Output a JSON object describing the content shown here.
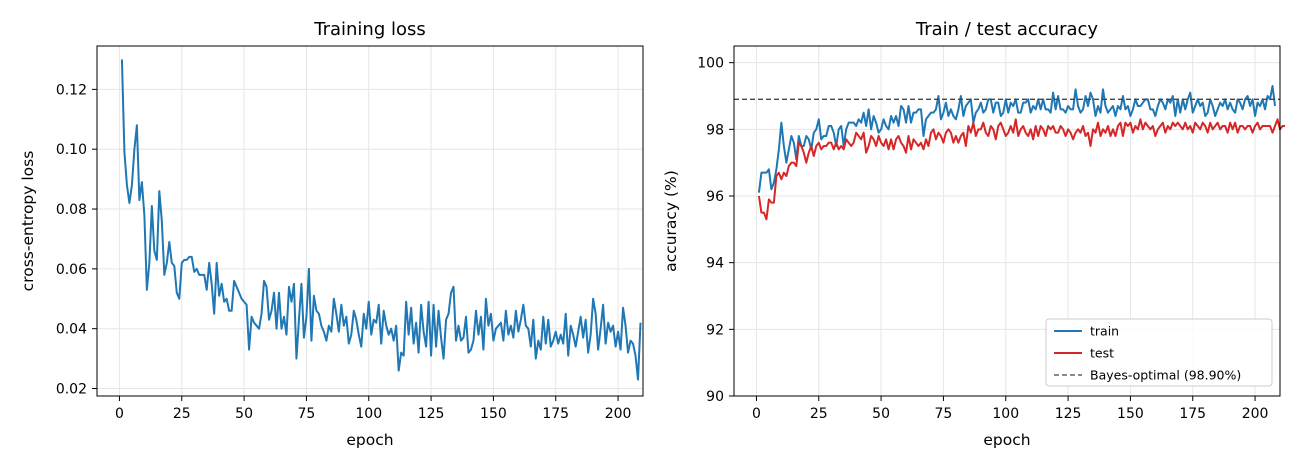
{
  "colors": {
    "train": "#1f77b4",
    "test": "#d62728",
    "bayes": "#444444",
    "grid": "#e6e6e6"
  },
  "chart_data": [
    {
      "type": "line",
      "title": "Training loss",
      "xlabel": "epoch",
      "ylabel": "cross-entropy loss",
      "xlim": [
        -9,
        210
      ],
      "ylim": [
        0.0175,
        0.1345
      ],
      "xticks": [
        0,
        25,
        50,
        75,
        100,
        125,
        150,
        175,
        200
      ],
      "yticks": [
        0.02,
        0.04,
        0.06,
        0.08,
        0.1,
        0.12
      ],
      "ytick_labels": [
        "0.02",
        "0.04",
        "0.06",
        "0.08",
        "0.10",
        "0.12"
      ],
      "grid": true,
      "series": [
        {
          "color": "#1f77b4",
          "x_start": 1,
          "values": [
            0.13,
            0.099,
            0.088,
            0.082,
            0.088,
            0.1,
            0.108,
            0.083,
            0.089,
            0.078,
            0.053,
            0.062,
            0.081,
            0.066,
            0.063,
            0.086,
            0.076,
            0.058,
            0.062,
            0.069,
            0.062,
            0.061,
            0.052,
            0.05,
            0.062,
            0.063,
            0.063,
            0.064,
            0.064,
            0.059,
            0.06,
            0.058,
            0.058,
            0.058,
            0.053,
            0.062,
            0.055,
            0.045,
            0.062,
            0.051,
            0.055,
            0.049,
            0.05,
            0.046,
            0.046,
            0.056,
            0.054,
            0.052,
            0.05,
            0.049,
            0.048,
            0.033,
            0.044,
            0.042,
            0.041,
            0.04,
            0.045,
            0.056,
            0.054,
            0.043,
            0.046,
            0.052,
            0.04,
            0.052,
            0.04,
            0.044,
            0.038,
            0.054,
            0.049,
            0.055,
            0.03,
            0.043,
            0.055,
            0.037,
            0.044,
            0.06,
            0.036,
            0.051,
            0.046,
            0.045,
            0.041,
            0.039,
            0.036,
            0.041,
            0.039,
            0.05,
            0.045,
            0.039,
            0.048,
            0.041,
            0.044,
            0.035,
            0.038,
            0.046,
            0.043,
            0.038,
            0.034,
            0.045,
            0.04,
            0.049,
            0.038,
            0.043,
            0.042,
            0.048,
            0.035,
            0.046,
            0.041,
            0.038,
            0.04,
            0.036,
            0.041,
            0.026,
            0.032,
            0.031,
            0.049,
            0.038,
            0.047,
            0.035,
            0.042,
            0.032,
            0.048,
            0.039,
            0.034,
            0.049,
            0.031,
            0.048,
            0.034,
            0.046,
            0.037,
            0.03,
            0.043,
            0.045,
            0.052,
            0.054,
            0.036,
            0.041,
            0.036,
            0.037,
            0.044,
            0.032,
            0.033,
            0.036,
            0.046,
            0.038,
            0.044,
            0.033,
            0.05,
            0.041,
            0.045,
            0.036,
            0.04,
            0.041,
            0.042,
            0.036,
            0.046,
            0.038,
            0.041,
            0.037,
            0.046,
            0.039,
            0.043,
            0.048,
            0.041,
            0.04,
            0.034,
            0.043,
            0.03,
            0.036,
            0.033,
            0.044,
            0.035,
            0.043,
            0.034,
            0.036,
            0.039,
            0.035,
            0.038,
            0.035,
            0.045,
            0.031,
            0.041,
            0.038,
            0.034,
            0.039,
            0.044,
            0.037,
            0.043,
            0.032,
            0.038,
            0.05,
            0.045,
            0.033,
            0.04,
            0.048,
            0.035,
            0.042,
            0.039,
            0.041,
            0.034,
            0.039,
            0.033,
            0.047,
            0.041,
            0.032,
            0.036,
            0.035,
            0.031,
            0.023,
            0.042
          ]
        }
      ]
    },
    {
      "type": "line",
      "title": "Train / test accuracy",
      "xlabel": "epoch",
      "ylabel": "accuracy (%)",
      "xlim": [
        -9,
        210
      ],
      "ylim": [
        90,
        100.5
      ],
      "xticks": [
        0,
        25,
        50,
        75,
        100,
        125,
        150,
        175,
        200
      ],
      "yticks": [
        90,
        92,
        94,
        96,
        98,
        100
      ],
      "ytick_labels": [
        "90",
        "92",
        "94",
        "96",
        "98",
        "100"
      ],
      "grid": true,
      "hline": {
        "y": 98.9,
        "label": "Bayes-optimal (98.90%)",
        "color": "#444444",
        "dashed": true
      },
      "legend": {
        "position": "lower-right",
        "entries": [
          "train",
          "test",
          "Bayes-optimal (98.90%)"
        ]
      },
      "series": [
        {
          "name": "train",
          "color": "#1f77b4",
          "x_start": 1,
          "values": [
            96.1,
            96.7,
            96.7,
            96.7,
            96.8,
            96.2,
            96.4,
            96.8,
            97.4,
            98.2,
            97.5,
            97.0,
            97.4,
            97.8,
            97.6,
            97.1,
            97.8,
            97.5,
            97.5,
            97.8,
            97.7,
            97.4,
            97.9,
            98.0,
            98.3,
            97.7,
            97.8,
            97.8,
            98.1,
            98.1,
            97.9,
            97.5,
            98.0,
            98.1,
            97.5,
            98.0,
            98.2,
            98.2,
            98.2,
            98.1,
            98.3,
            98.2,
            98.5,
            98.1,
            98.6,
            98.0,
            98.4,
            98.2,
            97.9,
            98.0,
            98.3,
            98.1,
            98.0,
            98.4,
            98.2,
            98.4,
            98.1,
            98.7,
            98.6,
            98.2,
            98.7,
            98.2,
            98.5,
            98.5,
            98.6,
            98.6,
            97.8,
            98.3,
            98.4,
            98.5,
            98.5,
            98.6,
            99.0,
            98.3,
            98.5,
            98.8,
            98.4,
            98.6,
            98.4,
            98.3,
            98.6,
            99.0,
            98.4,
            98.7,
            98.8,
            98.9,
            98.2,
            98.5,
            98.6,
            98.8,
            98.5,
            98.6,
            98.9,
            98.9,
            98.5,
            98.8,
            98.8,
            98.4,
            98.5,
            98.9,
            98.5,
            98.8,
            98.7,
            98.9,
            98.5,
            98.5,
            98.8,
            98.8,
            98.9,
            98.5,
            98.7,
            98.6,
            98.9,
            98.6,
            98.9,
            98.6,
            98.6,
            98.5,
            99.1,
            98.6,
            99.0,
            98.6,
            98.6,
            98.5,
            98.7,
            98.6,
            98.6,
            99.2,
            98.7,
            98.5,
            98.6,
            99.0,
            98.7,
            99.1,
            98.9,
            98.4,
            98.7,
            98.5,
            99.2,
            98.7,
            98.5,
            98.6,
            98.7,
            98.4,
            98.7,
            98.6,
            99.0,
            98.6,
            98.7,
            98.4,
            98.6,
            98.9,
            98.7,
            98.7,
            98.8,
            98.9,
            98.9,
            98.6,
            98.6,
            98.4,
            98.7,
            98.9,
            98.8,
            98.6,
            98.9,
            98.8,
            99.0,
            98.4,
            98.9,
            98.5,
            98.9,
            98.6,
            98.9,
            99.1,
            98.5,
            98.7,
            98.9,
            98.7,
            98.8,
            98.4,
            98.5,
            98.9,
            98.7,
            98.4,
            98.6,
            98.8,
            98.7,
            98.9,
            98.6,
            98.8,
            98.6,
            98.5,
            98.9,
            98.8,
            98.6,
            98.9,
            99.0,
            98.7,
            98.9,
            98.4,
            98.8,
            98.7,
            98.9,
            98.6,
            99.0,
            98.9,
            99.3,
            98.7
          ]
        },
        {
          "name": "test",
          "color": "#d62728",
          "x_start": 1,
          "values": [
            96.0,
            95.5,
            95.5,
            95.3,
            95.9,
            95.8,
            95.8,
            96.6,
            96.7,
            96.5,
            96.7,
            96.6,
            96.9,
            97.0,
            97.0,
            96.9,
            97.6,
            97.5,
            97.3,
            97.0,
            97.3,
            97.5,
            97.2,
            97.5,
            97.6,
            97.4,
            97.5,
            97.5,
            97.6,
            97.6,
            97.4,
            97.6,
            97.4,
            97.5,
            97.4,
            97.7,
            97.6,
            97.5,
            97.6,
            97.9,
            97.8,
            97.7,
            97.9,
            97.3,
            97.5,
            97.8,
            97.7,
            97.5,
            97.8,
            97.6,
            97.5,
            97.7,
            97.4,
            97.7,
            97.4,
            97.7,
            97.8,
            97.6,
            97.5,
            97.3,
            97.8,
            97.4,
            97.7,
            97.6,
            97.5,
            97.6,
            97.4,
            97.7,
            97.5,
            97.9,
            98.0,
            97.7,
            97.9,
            97.8,
            97.6,
            97.9,
            98.0,
            97.9,
            97.6,
            97.8,
            97.6,
            97.8,
            97.9,
            97.5,
            98.1,
            97.9,
            98.2,
            97.8,
            98.0,
            98.0,
            98.2,
            97.9,
            97.8,
            98.1,
            98.0,
            97.7,
            98.1,
            98.2,
            98.0,
            97.8,
            97.9,
            98.1,
            97.9,
            98.3,
            97.8,
            98.0,
            98.1,
            97.9,
            97.8,
            98.0,
            97.7,
            98.1,
            97.8,
            98.1,
            98.0,
            97.8,
            98.1,
            98.0,
            98.1,
            97.9,
            97.9,
            98.1,
            98.0,
            97.8,
            98.0,
            97.9,
            97.7,
            97.9,
            98.0,
            97.9,
            98.1,
            97.8,
            97.9,
            97.5,
            98.0,
            97.9,
            98.2,
            97.8,
            98.0,
            97.9,
            98.1,
            97.8,
            98.0,
            97.8,
            98.1,
            98.2,
            97.8,
            98.2,
            98.1,
            98.2,
            97.9,
            98.1,
            98.0,
            98.3,
            98.0,
            98.2,
            98.1,
            98.0,
            98.1,
            97.8,
            98.0,
            98.1,
            98.2,
            97.9,
            98.1,
            98.0,
            98.2,
            98.1,
            98.2,
            98.1,
            98.0,
            98.2,
            98.0,
            98.1,
            97.9,
            98.2,
            98.1,
            98.0,
            98.2,
            98.1,
            97.9,
            98.2,
            98.0,
            98.1,
            98.2,
            98.0,
            98.1,
            98.1,
            97.9,
            98.2,
            98.0,
            98.2,
            97.9,
            98.1,
            98.1,
            98.0,
            98.1,
            98.1,
            97.9,
            98.1,
            98.2,
            98.0,
            98.1,
            98.1,
            98.1,
            98.1,
            97.9,
            98.1,
            98.3,
            98.0,
            98.1,
            98.1
          ]
        }
      ]
    }
  ]
}
